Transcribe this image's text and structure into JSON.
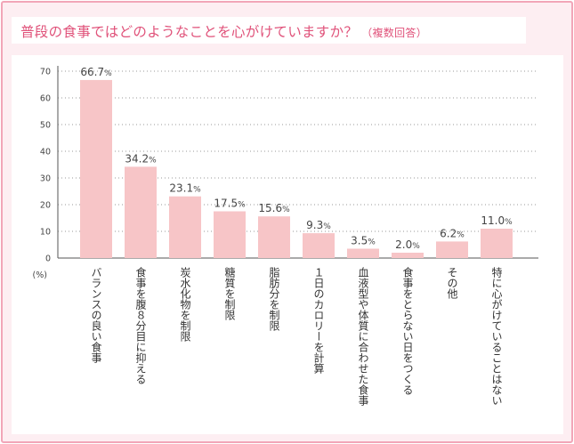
{
  "title": "普段の食事ではどのようなことを心がけていますか？",
  "subtitle": "（複数回答）",
  "chart_data": {
    "type": "bar",
    "title": "普段の食事ではどのようなことを心がけていますか？（複数回答）",
    "ylabel": "(%)",
    "xlabel": "",
    "ylim": [
      0,
      70
    ],
    "yticks": [
      0,
      10,
      20,
      30,
      40,
      50,
      60,
      70
    ],
    "grid": true,
    "categories": [
      "バランスの良い食事",
      "食事を腹８分目に抑える",
      "炭水化物を制限",
      "糖質を制限",
      "脂肪分を制限",
      "１日のカロリーを計算",
      "血液型や体質に合わせた食事",
      "食事をとらない日をつくる",
      "その他",
      "特に心がけていることはない"
    ],
    "values": [
      66.7,
      34.2,
      23.1,
      17.5,
      15.6,
      9.3,
      3.5,
      2.0,
      6.2,
      11.0
    ],
    "value_labels": [
      "66.7",
      "34.2",
      "23.1",
      "17.5",
      "15.6",
      "9.3",
      "3.5",
      "2.0",
      "6.2",
      "11.0"
    ],
    "value_unit": "%",
    "bar_color": "#f7c5c7"
  }
}
